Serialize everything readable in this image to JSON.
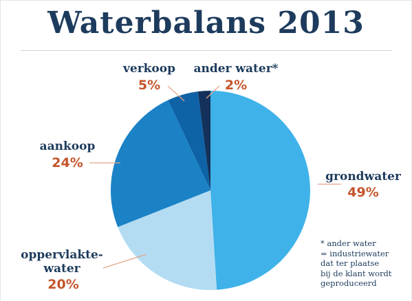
{
  "chart_data": {
    "type": "pie",
    "title": "Waterbalans 2013",
    "slices": [
      {
        "label": "grondwater",
        "value": 49,
        "value_label": "49%",
        "color": "#3fb2e9"
      },
      {
        "label": "oppervlakte-water",
        "label_lines": [
          "oppervlakte-",
          "water"
        ],
        "value": 20,
        "value_label": "20%",
        "color": "#b3dcf3"
      },
      {
        "label": "aankoop",
        "value": 24,
        "value_label": "24%",
        "color": "#1b82c6"
      },
      {
        "label": "verkoop",
        "value": 5,
        "value_label": "5%",
        "color": "#0e63a6"
      },
      {
        "label": "ander water*",
        "value": 2,
        "value_label": "2%",
        "color": "#13315a"
      }
    ],
    "legend": "none",
    "start_angle_deg": 0,
    "direction": "clockwise"
  },
  "footnote": {
    "lines": [
      "* ander water",
      "= industriewater",
      "dat ter plaatse",
      "bij de klant wordt",
      "geproduceerd"
    ]
  }
}
